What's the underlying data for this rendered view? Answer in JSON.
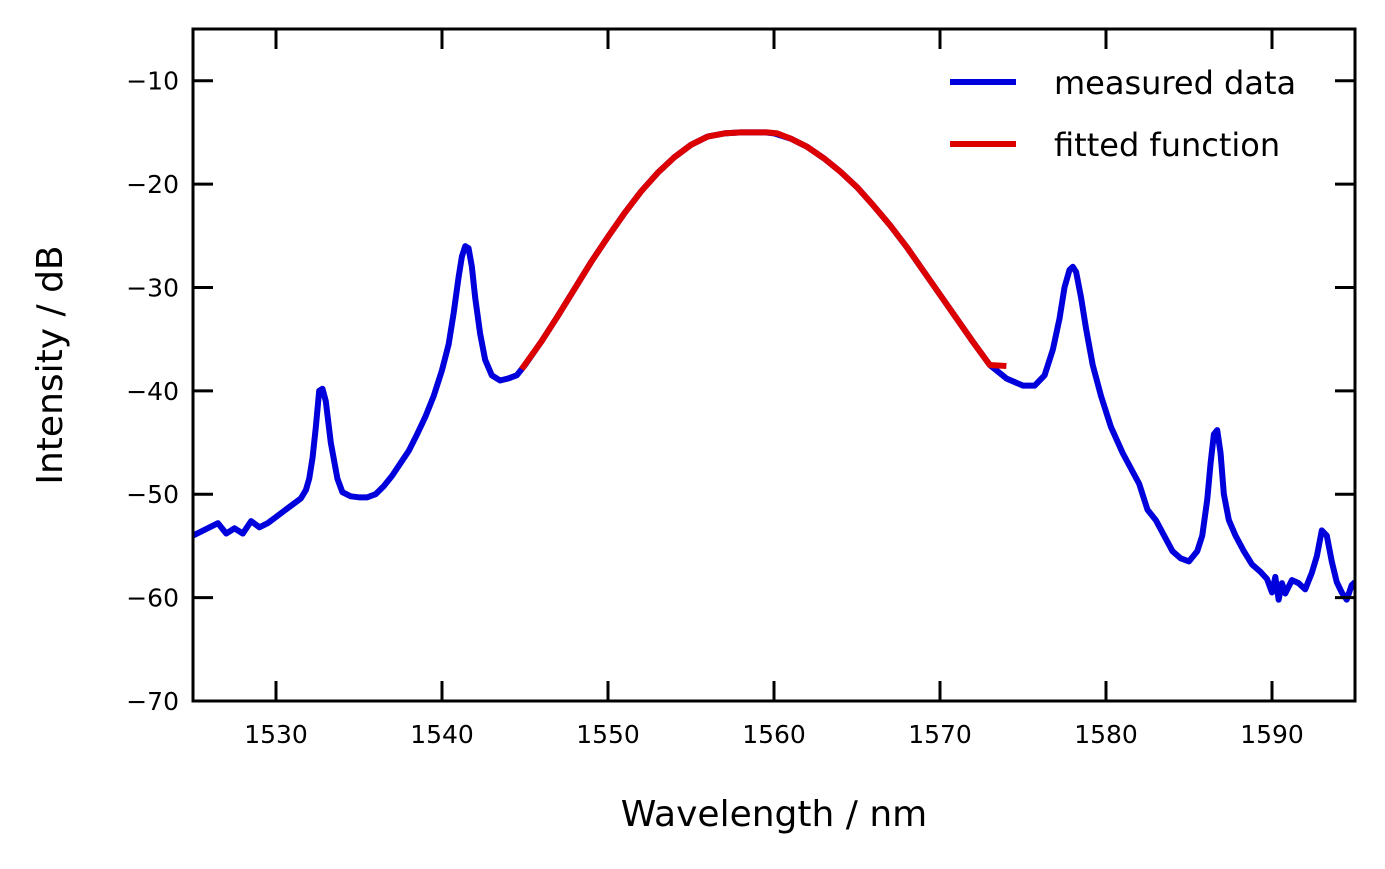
{
  "chart_data": {
    "type": "line",
    "xlabel": "Wavelength / nm",
    "ylabel": "Intensity / dB",
    "xlim": [
      1525,
      1595
    ],
    "ylim": [
      -70,
      -5
    ],
    "xticks": [
      1530,
      1540,
      1550,
      1560,
      1570,
      1580,
      1590
    ],
    "yticks": [
      -70,
      -60,
      -50,
      -40,
      -30,
      -20,
      -10
    ],
    "grid": false,
    "legend_position": "top-right",
    "series": [
      {
        "name": "measured data",
        "color": "#0000dd",
        "x": [
          1525,
          1526,
          1526.5,
          1527,
          1527.5,
          1528,
          1528.5,
          1529,
          1529.5,
          1530,
          1530.5,
          1531,
          1531.5,
          1531.8,
          1532,
          1532.2,
          1532.4,
          1532.6,
          1532.8,
          1533,
          1533.3,
          1533.7,
          1534,
          1534.5,
          1535,
          1535.5,
          1536,
          1536.5,
          1537,
          1537.5,
          1538,
          1538.5,
          1539,
          1539.5,
          1540,
          1540.4,
          1540.7,
          1541,
          1541.2,
          1541.4,
          1541.6,
          1541.8,
          1542,
          1542.3,
          1542.6,
          1543,
          1543.5,
          1544,
          1544.5,
          1545,
          1546,
          1547,
          1548,
          1549,
          1550,
          1551,
          1552,
          1553,
          1554,
          1555,
          1556,
          1557,
          1558,
          1559,
          1559.5,
          1560,
          1561,
          1562,
          1563,
          1564,
          1565,
          1566,
          1567,
          1568,
          1569,
          1570,
          1571,
          1572,
          1573,
          1574,
          1575,
          1575.7,
          1576.3,
          1576.8,
          1577.2,
          1577.5,
          1577.8,
          1578,
          1578.2,
          1578.5,
          1578.8,
          1579.2,
          1579.7,
          1580.3,
          1581,
          1582,
          1582.5,
          1583,
          1583.5,
          1584,
          1584.5,
          1585,
          1585.5,
          1585.8,
          1586.1,
          1586.3,
          1586.5,
          1586.7,
          1586.9,
          1587.1,
          1587.4,
          1587.8,
          1588.3,
          1588.8,
          1589.3,
          1589.7,
          1590,
          1590.2,
          1590.4,
          1590.6,
          1590.8,
          1591.2,
          1591.6,
          1592,
          1592.4,
          1592.7,
          1593,
          1593.3,
          1593.6,
          1593.9,
          1594.2,
          1594.5,
          1594.8,
          1595
        ],
        "y": [
          -54,
          -53.2,
          -52.8,
          -53.8,
          -53.3,
          -53.8,
          -52.6,
          -53.2,
          -52.8,
          -52.2,
          -51.6,
          -51,
          -50.4,
          -49.6,
          -48.5,
          -46.5,
          -43.5,
          -40,
          -39.8,
          -41,
          -45,
          -48.5,
          -49.8,
          -50.2,
          -50.3,
          -50.3,
          -50,
          -49.2,
          -48.2,
          -47,
          -45.8,
          -44.2,
          -42.5,
          -40.5,
          -38,
          -35.5,
          -32.5,
          -29,
          -27,
          -26,
          -26.2,
          -28,
          -31,
          -34.5,
          -37,
          -38.5,
          -39,
          -38.8,
          -38.5,
          -37.5,
          -35.2,
          -32.7,
          -30.1,
          -27.5,
          -25.1,
          -22.8,
          -20.7,
          -18.9,
          -17.4,
          -16.2,
          -15.4,
          -15.1,
          -15.0,
          -15.0,
          -15.0,
          -15.1,
          -15.6,
          -16.4,
          -17.5,
          -18.8,
          -20.3,
          -22.1,
          -24.0,
          -26.1,
          -28.4,
          -30.7,
          -33.0,
          -35.3,
          -37.5,
          -38.8,
          -39.5,
          -39.5,
          -38.5,
          -36,
          -33,
          -30,
          -28.3,
          -28,
          -28.5,
          -31,
          -34,
          -37.5,
          -40.5,
          -43.5,
          -46,
          -49,
          -51.5,
          -52.5,
          -54,
          -55.5,
          -56.2,
          -56.5,
          -55.5,
          -54,
          -50.5,
          -47,
          -44.2,
          -43.8,
          -46,
          -50,
          -52.5,
          -54,
          -55.5,
          -56.8,
          -57.5,
          -58.2,
          -59.5,
          -58,
          -60.2,
          -58.6,
          -59.6,
          -58.3,
          -58.6,
          -59.2,
          -57.6,
          -56,
          -53.5,
          -54,
          -56.5,
          -58.5,
          -59.5,
          -60.2,
          -58.8,
          -58.5
        ]
      },
      {
        "name": "fitted function",
        "color": "#dd0000",
        "x": [
          1544.8,
          1546,
          1547,
          1548,
          1549,
          1550,
          1551,
          1552,
          1553,
          1554,
          1555,
          1556,
          1557,
          1558,
          1559,
          1559.6,
          1560.2,
          1561,
          1562,
          1563,
          1564,
          1565,
          1566,
          1567,
          1568,
          1569,
          1570,
          1571,
          1572,
          1573,
          1574
        ],
        "y": [
          -37.9,
          -35.2,
          -32.7,
          -30.1,
          -27.5,
          -25.1,
          -22.8,
          -20.7,
          -18.9,
          -17.4,
          -16.2,
          -15.4,
          -15.1,
          -15.0,
          -15.0,
          -15.0,
          -15.1,
          -15.6,
          -16.4,
          -17.5,
          -18.8,
          -20.3,
          -22.1,
          -24.0,
          -26.1,
          -28.4,
          -30.7,
          -33.0,
          -35.3,
          -37.5,
          -37.6
        ]
      }
    ]
  }
}
